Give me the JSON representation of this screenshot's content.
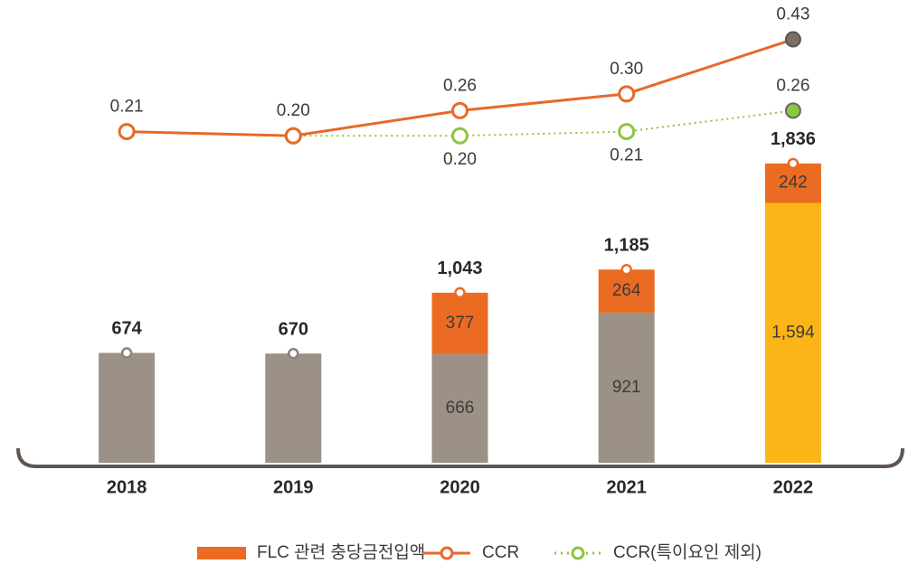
{
  "chart_data": {
    "type": "combo",
    "categories": [
      "2018",
      "2019",
      "2020",
      "2021",
      "2022"
    ],
    "ylim": [
      0,
      2700
    ],
    "y2lim": [
      -0.58,
      0.47
    ],
    "bar_series": [
      {
        "colors": [
          "#9c9187",
          "#9c9187",
          "#9c9187",
          "#9c9187",
          "#fbb516"
        ],
        "values": [
          674,
          670,
          666,
          921,
          1594
        ],
        "value_labels": [
          null,
          null,
          "666",
          "921",
          "1,594"
        ]
      },
      {
        "name": "FLC 관련 충당금전입액",
        "color": "#ec6b23",
        "values": [
          null,
          null,
          377,
          264,
          242
        ],
        "value_labels": [
          null,
          null,
          "377",
          "264",
          "242"
        ]
      }
    ],
    "totals": [
      674,
      670,
      1043,
      1185,
      1836
    ],
    "totals_labels": [
      "674",
      "670",
      "1,043",
      "1,185",
      "1,836"
    ],
    "line_series": [
      {
        "name": "CCR",
        "color": "#e8692a",
        "dash": false,
        "last_fill": "#7a6f66",
        "values": [
          0.21,
          0.2,
          0.26,
          0.3,
          0.43
        ],
        "value_labels": [
          "0.21",
          "0.20",
          "0.26",
          "0.30",
          "0.43"
        ]
      },
      {
        "name": "CCR(특이요인 제외)",
        "color": "#8cc63f",
        "dash": true,
        "last_fill": "#8cc63f",
        "values": [
          null,
          0.2,
          0.2,
          0.21,
          0.26
        ],
        "value_labels": [
          null,
          null,
          "0.20",
          "0.21",
          "0.26"
        ]
      }
    ]
  }
}
